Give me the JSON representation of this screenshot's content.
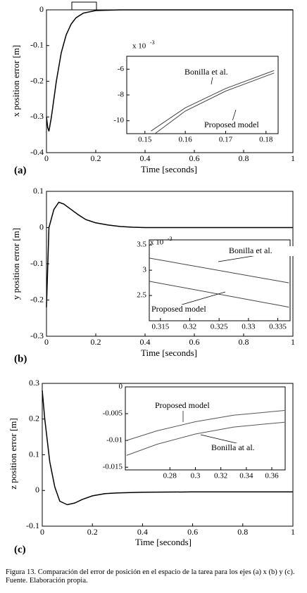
{
  "chart_data": [
    {
      "type": "line",
      "panel_label": "(a)",
      "ylabel": "x position error [m]",
      "xlabel": "Time [seconds]",
      "xlim": [
        0,
        1
      ],
      "ylim": [
        -0.4,
        0
      ],
      "xticks": [
        0,
        0.2,
        0.4,
        0.6,
        0.8,
        1
      ],
      "yticks": [
        0,
        -0.1,
        -0.2,
        -0.3,
        -0.4
      ],
      "series": [
        {
          "color": "#000000",
          "x": [
            0,
            0.005,
            0.01,
            0.02,
            0.04,
            0.06,
            0.08,
            0.1,
            0.12,
            0.15,
            0.2,
            0.3,
            0.4,
            1
          ],
          "values": [
            -0.3,
            -0.33,
            -0.34,
            -0.3,
            -0.2,
            -0.12,
            -0.07,
            -0.04,
            -0.022,
            -0.009,
            -0.002,
            0,
            0,
            0
          ]
        }
      ],
      "inset": {
        "scale_base": "x 10",
        "scale_exponent": "-3",
        "xlim": [
          0.1455,
          0.183
        ],
        "ylim": [
          -11,
          -5
        ],
        "xticks": [
          0.15,
          0.16,
          0.17,
          0.18
        ],
        "yticks": [
          -6,
          -8,
          -10
        ],
        "series": [
          {
            "name": "Bonilla et al.",
            "color": "#444444",
            "x": [
              0.1515,
              0.16,
              0.17,
              0.182
            ],
            "values": [
              -10.8,
              -9,
              -7.5,
              -6.1
            ]
          },
          {
            "name": "Proposed model",
            "color": "#444444",
            "x": [
              0.1525,
              0.16,
              0.17,
              0.182
            ],
            "values": [
              -11,
              -9.25,
              -7.7,
              -6.3
            ]
          }
        ]
      }
    },
    {
      "type": "line",
      "panel_label": "(b)",
      "ylabel": "y position error [m]",
      "xlabel": "Time [seconds]",
      "xlim": [
        0,
        1
      ],
      "ylim": [
        -0.3,
        0.1
      ],
      "xticks": [
        0,
        0.2,
        0.4,
        0.6,
        0.8,
        1
      ],
      "yticks": [
        0.1,
        0,
        -0.1,
        -0.2,
        -0.3
      ],
      "series": [
        {
          "color": "#000000",
          "x": [
            0,
            0.01,
            0.03,
            0.05,
            0.07,
            0.1,
            0.13,
            0.16,
            0.2,
            0.25,
            0.3,
            0.35,
            0.4,
            1
          ],
          "values": [
            -0.22,
            0,
            0.05,
            0.07,
            0.065,
            0.05,
            0.035,
            0.022,
            0.013,
            0.007,
            0.003,
            0.001,
            0,
            0
          ]
        }
      ],
      "inset": {
        "scale_base": "x 10",
        "scale_exponent": "-3",
        "xlim": [
          0.3131,
          0.3371
        ],
        "ylim": [
          2,
          3.6
        ],
        "xticks": [
          0.315,
          0.32,
          0.325,
          0.33,
          0.335
        ],
        "yticks": [
          3.5,
          3,
          2.5
        ],
        "series": [
          {
            "name": "Bonilla et al.",
            "color": "#444444",
            "x": [
              0.3131,
              0.3369
            ],
            "values": [
              3.24,
              2.75
            ]
          },
          {
            "name": "Proposed model",
            "color": "#444444",
            "x": [
              0.3131,
              0.3369
            ],
            "values": [
              2.78,
              2.27
            ]
          }
        ]
      }
    },
    {
      "type": "line",
      "panel_label": "(c)",
      "ylabel": "z position error [m]",
      "xlabel": "Time [seconds]",
      "xlim": [
        0,
        1
      ],
      "ylim": [
        -0.1,
        0.3
      ],
      "xticks": [
        0,
        0.2,
        0.4,
        0.6,
        0.8,
        1
      ],
      "yticks": [
        0.3,
        0.2,
        0.1,
        0,
        -0.1
      ],
      "series": [
        {
          "color": "#000000",
          "x": [
            0,
            0.01,
            0.03,
            0.05,
            0.07,
            0.1,
            0.13,
            0.16,
            0.2,
            0.25,
            0.3,
            0.4,
            0.6,
            1
          ],
          "values": [
            0.28,
            0.2,
            0.08,
            0.01,
            -0.03,
            -0.04,
            -0.035,
            -0.025,
            -0.015,
            -0.009,
            -0.007,
            -0.005,
            -0.004,
            -0.004
          ]
        }
      ],
      "inset": {
        "xlim": [
          0.245,
          0.3705
        ],
        "ylim": [
          -0.0155,
          0
        ],
        "xticks": [
          0.28,
          0.3,
          0.32,
          0.34,
          0.36
        ],
        "yticks": [
          0,
          -0.005,
          -0.01,
          -0.015
        ],
        "series": [
          {
            "name": "Proposed model",
            "color": "#555555",
            "x": [
              0.246,
              0.27,
              0.3,
              0.33,
              0.37
            ],
            "values": [
              -0.01,
              -0.0082,
              -0.0065,
              -0.0053,
              -0.0044
            ]
          },
          {
            "name": "Bonilla at al.",
            "color": "#555555",
            "x": [
              0.246,
              0.27,
              0.3,
              0.33,
              0.37
            ],
            "values": [
              -0.0128,
              -0.0107,
              -0.0088,
              -0.0075,
              -0.0066
            ]
          }
        ]
      }
    }
  ],
  "caption": "Figura 13. Comparación del error de posición en el espacio de la tarea para los ejes (a) x (b) y (c). Fuente. Elaboración propia."
}
